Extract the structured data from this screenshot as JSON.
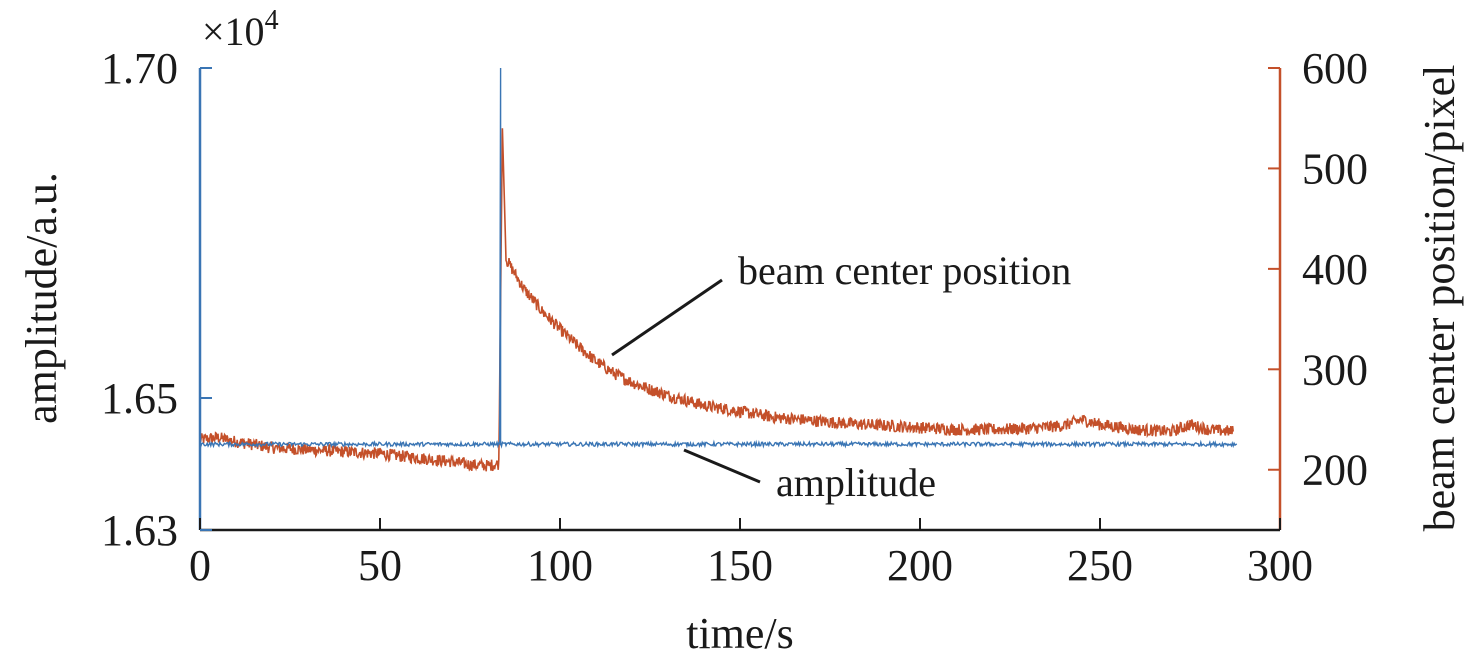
{
  "chart_data": {
    "type": "line",
    "title": "",
    "xlabel": "time/s",
    "ylabel_left": "amplitude/a.u.",
    "ylabel_right": "beam center position/pixel",
    "left_axis_multiplier": "×10",
    "left_axis_multiplier_exp": "4",
    "xlim": [
      0,
      300
    ],
    "ylim_left": [
      1.63,
      1.7
    ],
    "ylim_right": [
      140,
      600
    ],
    "x_ticks": [
      "0",
      "50",
      "100",
      "150",
      "200",
      "250",
      "300"
    ],
    "y_left_ticks": [
      "1.63",
      "1.65",
      "1.70"
    ],
    "y_left_tick_values": [
      1.63,
      1.65,
      1.7
    ],
    "y_right_ticks": [
      "200",
      "300",
      "400",
      "500",
      "600"
    ],
    "y_right_tick_values": [
      200,
      300,
      400,
      500,
      600
    ],
    "grid": false,
    "colors": {
      "amplitude": "#3a75b4",
      "beam": "#c4502a",
      "axis": "#1a1a1a"
    },
    "series": [
      {
        "name": "amplitude",
        "axis": "left",
        "x_range": [
          0,
          288
        ],
        "baseline": 1.643,
        "noise": 0.0003,
        "spikes": [
          {
            "x": 0,
            "y": 1.7
          },
          {
            "x": 83.5,
            "y": 1.7
          }
        ]
      },
      {
        "name": "beam center position",
        "axis": "right",
        "points": [
          [
            0,
            230
          ],
          [
            5,
            232
          ],
          [
            10,
            228
          ],
          [
            20,
            222
          ],
          [
            30,
            220
          ],
          [
            40,
            218
          ],
          [
            50,
            216
          ],
          [
            60,
            212
          ],
          [
            70,
            208
          ],
          [
            75,
            205
          ],
          [
            80,
            204
          ],
          [
            83,
            206
          ],
          [
            84,
            540
          ],
          [
            85,
            410
          ],
          [
            90,
            380
          ],
          [
            95,
            358
          ],
          [
            100,
            340
          ],
          [
            105,
            323
          ],
          [
            110,
            308
          ],
          [
            115,
            296
          ],
          [
            120,
            287
          ],
          [
            125,
            280
          ],
          [
            130,
            274
          ],
          [
            140,
            264
          ],
          [
            150,
            258
          ],
          [
            160,
            252
          ],
          [
            170,
            249
          ],
          [
            180,
            246
          ],
          [
            190,
            244
          ],
          [
            200,
            242
          ],
          [
            210,
            240
          ],
          [
            220,
            240
          ],
          [
            230,
            241
          ],
          [
            240,
            244
          ],
          [
            245,
            250
          ],
          [
            250,
            245
          ],
          [
            260,
            240
          ],
          [
            270,
            238
          ],
          [
            275,
            245
          ],
          [
            280,
            240
          ],
          [
            287,
            238
          ]
        ],
        "noise": 6
      }
    ],
    "annotations": [
      {
        "text": "beam center position",
        "series": "beam center position"
      },
      {
        "text": "amplitude",
        "series": "amplitude"
      }
    ]
  }
}
